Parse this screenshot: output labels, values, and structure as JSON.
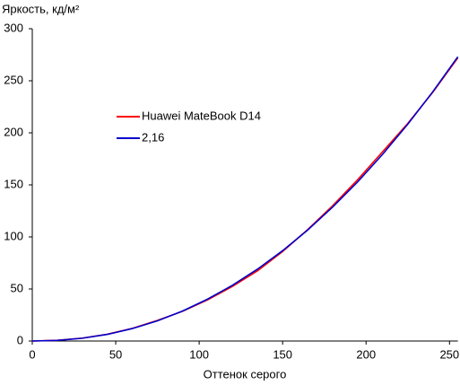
{
  "chart_data": {
    "type": "line",
    "y_label": "Яркость, кд/м²",
    "x_label": "Оттенок серого",
    "x": [
      0,
      15,
      30,
      45,
      60,
      75,
      90,
      105,
      120,
      135,
      150,
      165,
      180,
      195,
      210,
      225,
      240,
      255
    ],
    "series": [
      {
        "name": "Huawei MateBook D14",
        "color": "#ff0000",
        "values": [
          0,
          0.7,
          2.8,
          6.5,
          12.2,
          19.8,
          28.5,
          39.5,
          52.5,
          67.5,
          86,
          107,
          130,
          155,
          182,
          209,
          239,
          272
        ]
      },
      {
        "name": "2,16",
        "color": "#0000cc",
        "values": [
          0,
          0.6,
          2.7,
          6.4,
          12,
          19.4,
          28.8,
          40.2,
          53.6,
          69.1,
          86.8,
          106.6,
          128.7,
          152.9,
          179.5,
          208.3,
          239.5,
          273
        ]
      }
    ],
    "xlim": [
      0,
      255
    ],
    "ylim": [
      0,
      300
    ],
    "xticks": [
      0,
      50,
      100,
      150,
      200,
      250
    ],
    "yticks": [
      0,
      50,
      100,
      150,
      200,
      250,
      300
    ],
    "grid": false,
    "legend": "center-left"
  }
}
